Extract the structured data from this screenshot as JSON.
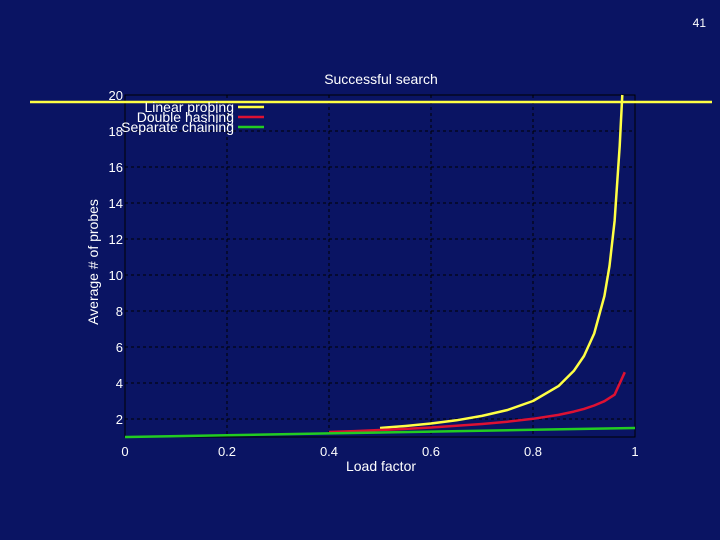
{
  "page_number": "41",
  "colors": {
    "background": "#0a1463",
    "grid": "#000000",
    "text": "#ffffff"
  },
  "chart_data": {
    "type": "line",
    "title": "Successful search",
    "xlabel": "Load factor",
    "ylabel": "Average # of probes",
    "xlim": [
      0,
      1
    ],
    "ylim": [
      1,
      20
    ],
    "x_ticks": [
      0,
      0.2,
      0.4,
      0.6,
      0.8,
      1
    ],
    "x_tick_labels": [
      "0",
      "0.2",
      "0.4",
      "0.6",
      "0.8",
      "1"
    ],
    "y_ticks": [
      2,
      4,
      6,
      8,
      10,
      12,
      14,
      16,
      18,
      20
    ],
    "y_tick_labels": [
      "2",
      "4",
      "6",
      "8",
      "10",
      "12",
      "14",
      "16",
      "18",
      "20"
    ],
    "grid": true,
    "legend_position": "top-left",
    "series": [
      {
        "name": "Linear probing",
        "color": "#ffff44",
        "x": [
          0.5,
          0.55,
          0.6,
          0.65,
          0.7,
          0.75,
          0.8,
          0.85,
          0.88,
          0.9,
          0.92,
          0.94,
          0.95,
          0.96,
          0.97,
          0.975
        ],
        "y": [
          1.5,
          1.61,
          1.75,
          1.93,
          2.17,
          2.5,
          3.0,
          3.83,
          4.67,
          5.5,
          6.75,
          8.83,
          10.5,
          13.0,
          17.17,
          20.0
        ]
      },
      {
        "name": "Double hashing",
        "color": "#dd1133",
        "x": [
          0.4,
          0.45,
          0.5,
          0.55,
          0.6,
          0.65,
          0.7,
          0.75,
          0.8,
          0.85,
          0.88,
          0.9,
          0.92,
          0.94,
          0.96,
          0.98
        ],
        "y": [
          1.28,
          1.33,
          1.39,
          1.45,
          1.53,
          1.62,
          1.72,
          1.85,
          2.01,
          2.23,
          2.41,
          2.56,
          2.75,
          2.99,
          3.35,
          4.6
        ]
      },
      {
        "name": "Separate chaining",
        "color": "#22cc22",
        "x": [
          0,
          0.2,
          0.4,
          0.6,
          0.8,
          1.0
        ],
        "y": [
          1.0,
          1.1,
          1.2,
          1.3,
          1.4,
          1.5
        ]
      }
    ]
  }
}
